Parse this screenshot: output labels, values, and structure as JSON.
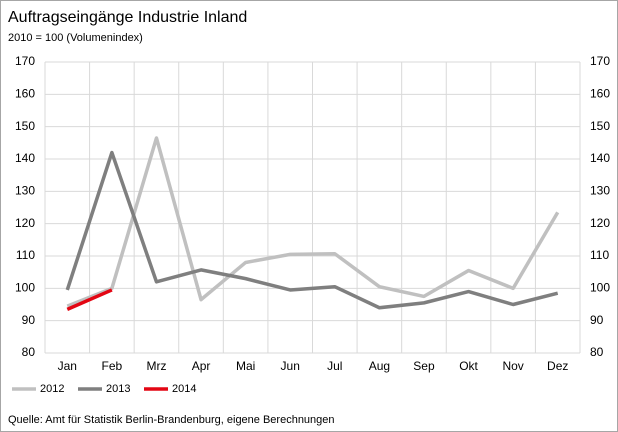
{
  "chart_data": {
    "type": "line",
    "title": "Auftragseingänge Industrie Inland",
    "subtitle": "2010 = 100 (Volumenindex)",
    "source": "Quelle: Amt für Statistik Berlin-Brandenburg, eigene Berechnungen",
    "categories": [
      "Jan",
      "Feb",
      "Mrz",
      "Apr",
      "Mai",
      "Jun",
      "Jul",
      "Aug",
      "Sep",
      "Okt",
      "Nov",
      "Dez"
    ],
    "series": [
      {
        "name": "2012",
        "color": "#c0c0c0",
        "values": [
          94.5,
          100,
          146.5,
          96.5,
          108,
          110.5,
          110.7,
          100.5,
          97.5,
          105.5,
          100,
          123.5
        ]
      },
      {
        "name": "2013",
        "color": "#7f7f7f",
        "values": [
          99.5,
          142,
          102,
          105.7,
          103,
          99.5,
          100.5,
          94,
          95.5,
          99,
          95,
          98.5
        ]
      },
      {
        "name": "2014",
        "color": "#e30613",
        "values": [
          93.5,
          99.5,
          null,
          null,
          null,
          null,
          null,
          null,
          null,
          null,
          null,
          null
        ]
      }
    ],
    "ylim": [
      80,
      170
    ],
    "yticks": [
      80,
      90,
      100,
      110,
      120,
      130,
      140,
      150,
      160,
      170
    ],
    "y2lim": [
      80,
      170
    ],
    "y2ticks": [
      80,
      90,
      100,
      110,
      120,
      130,
      140,
      150,
      160,
      170
    ],
    "grid": true,
    "legend": "bottom-left"
  }
}
